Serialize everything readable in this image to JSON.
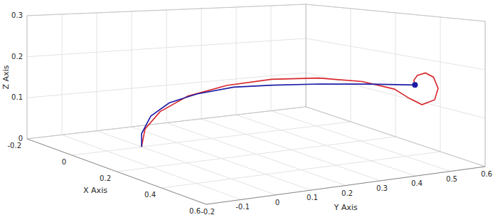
{
  "chart_data": {
    "type": "line3d",
    "x_label": "X Axis",
    "y_label": "Y Axis",
    "z_label": "Z Axis",
    "xlim": [
      -0.2,
      0.6
    ],
    "ylim": [
      -0.2,
      0.6
    ],
    "zlim": [
      0,
      0.3
    ],
    "xticks": [
      -0.2,
      0,
      0.2,
      0.4,
      0.6
    ],
    "yticks": [
      -0.2,
      -0.1,
      0,
      0.1,
      0.2,
      0.3,
      0.4,
      0.5,
      0.6
    ],
    "zticks": [
      0,
      0.1,
      0.2,
      0.3
    ],
    "grid": true,
    "series": [
      {
        "color": "#d7262b",
        "x": [
          0,
          0,
          0.02,
          0.05,
          0.1,
          0.16,
          0.23,
          0.3,
          0.35,
          0.37,
          0.38,
          0.39,
          0.39,
          0.385,
          0.38,
          0.375,
          0.375,
          0.38
        ],
        "y": [
          0,
          0.01,
          0.04,
          0.1,
          0.18,
          0.27,
          0.36,
          0.44,
          0.5,
          0.53,
          0.56,
          0.59,
          0.6,
          0.59,
          0.57,
          0.55,
          0.54,
          0.54
        ],
        "z": [
          0,
          0.04,
          0.08,
          0.115,
          0.14,
          0.155,
          0.16,
          0.155,
          0.14,
          0.12,
          0.105,
          0.115,
          0.14,
          0.165,
          0.175,
          0.17,
          0.16,
          0.15
        ]
      },
      {
        "color": "#1c1ca8",
        "marker": "end",
        "x": [
          0,
          0,
          0.01,
          0.03,
          0.06,
          0.1,
          0.15,
          0.22,
          0.3,
          0.38
        ],
        "y": [
          0,
          0,
          0.02,
          0.06,
          0.12,
          0.2,
          0.28,
          0.37,
          0.46,
          0.54
        ],
        "z": [
          0,
          0.03,
          0.07,
          0.1,
          0.12,
          0.135,
          0.14,
          0.145,
          0.148,
          0.15
        ]
      }
    ]
  }
}
